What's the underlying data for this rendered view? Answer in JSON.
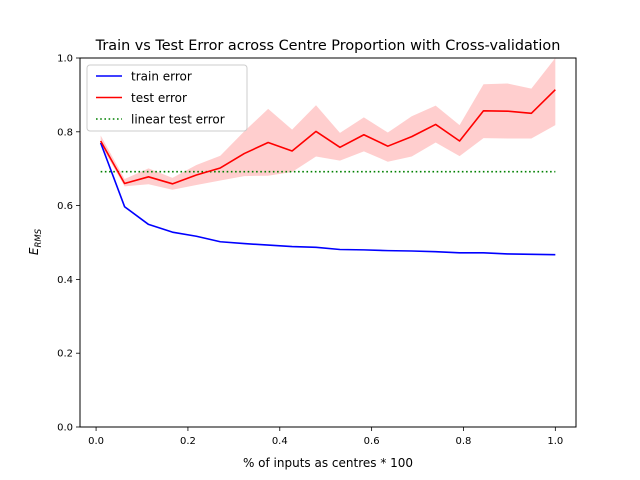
{
  "chart_data": {
    "type": "line",
    "title": "Train vs Test Error across Centre Proportion with Cross-validation",
    "xlabel": "% of inputs as centres * 100",
    "ylabel_base": "E",
    "ylabel_sub": "RMS",
    "xlim": [
      -0.035,
      1.045
    ],
    "ylim": [
      0.0,
      1.0
    ],
    "xticks": [
      0.0,
      0.2,
      0.4,
      0.6,
      0.8,
      1.0
    ],
    "xtick_labels": [
      "0.0",
      "0.2",
      "0.4",
      "0.6",
      "0.8",
      "1.0"
    ],
    "yticks": [
      0.0,
      0.2,
      0.4,
      0.6,
      0.8,
      1.0
    ],
    "ytick_labels": [
      "0.0",
      "0.2",
      "0.4",
      "0.6",
      "0.8",
      "1.0"
    ],
    "grid": false,
    "legend_position": "upper-left",
    "x": [
      0.01,
      0.0621,
      0.1142,
      0.1663,
      0.2184,
      0.2705,
      0.3226,
      0.3747,
      0.4268,
      0.4789,
      0.531,
      0.5831,
      0.6352,
      0.6873,
      0.7394,
      0.7915,
      0.8436,
      0.8957,
      0.9478,
      1.0
    ],
    "series": [
      {
        "name": "train error",
        "color": "#0000ff",
        "style": "solid",
        "values": [
          0.77,
          0.597,
          0.549,
          0.528,
          0.517,
          0.502,
          0.497,
          0.493,
          0.489,
          0.487,
          0.481,
          0.48,
          0.478,
          0.477,
          0.475,
          0.472,
          0.472,
          0.469,
          0.468,
          0.467
        ]
      },
      {
        "name": "test error",
        "color": "#ff0000",
        "style": "solid",
        "values": [
          0.775,
          0.66,
          0.678,
          0.659,
          0.683,
          0.702,
          0.741,
          0.771,
          0.748,
          0.801,
          0.758,
          0.792,
          0.761,
          0.787,
          0.82,
          0.775,
          0.857,
          0.856,
          0.85,
          0.914
        ],
        "band_lower": [
          0.765,
          0.652,
          0.658,
          0.643,
          0.656,
          0.668,
          0.68,
          0.681,
          0.691,
          0.733,
          0.722,
          0.747,
          0.719,
          0.733,
          0.771,
          0.734,
          0.783,
          0.782,
          0.782,
          0.818
        ],
        "band_upper": [
          0.79,
          0.672,
          0.701,
          0.675,
          0.71,
          0.735,
          0.801,
          0.862,
          0.806,
          0.872,
          0.797,
          0.839,
          0.798,
          0.842,
          0.871,
          0.818,
          0.929,
          0.931,
          0.917,
          1.0
        ],
        "band_color": "#ffc9c9"
      },
      {
        "name": "linear test error",
        "color": "#008000",
        "style": "dotted",
        "values": [
          0.692,
          0.692,
          0.692,
          0.692,
          0.692,
          0.692,
          0.692,
          0.692,
          0.692,
          0.692,
          0.692,
          0.692,
          0.692,
          0.692,
          0.692,
          0.692,
          0.692,
          0.692,
          0.692,
          0.692
        ]
      }
    ]
  }
}
